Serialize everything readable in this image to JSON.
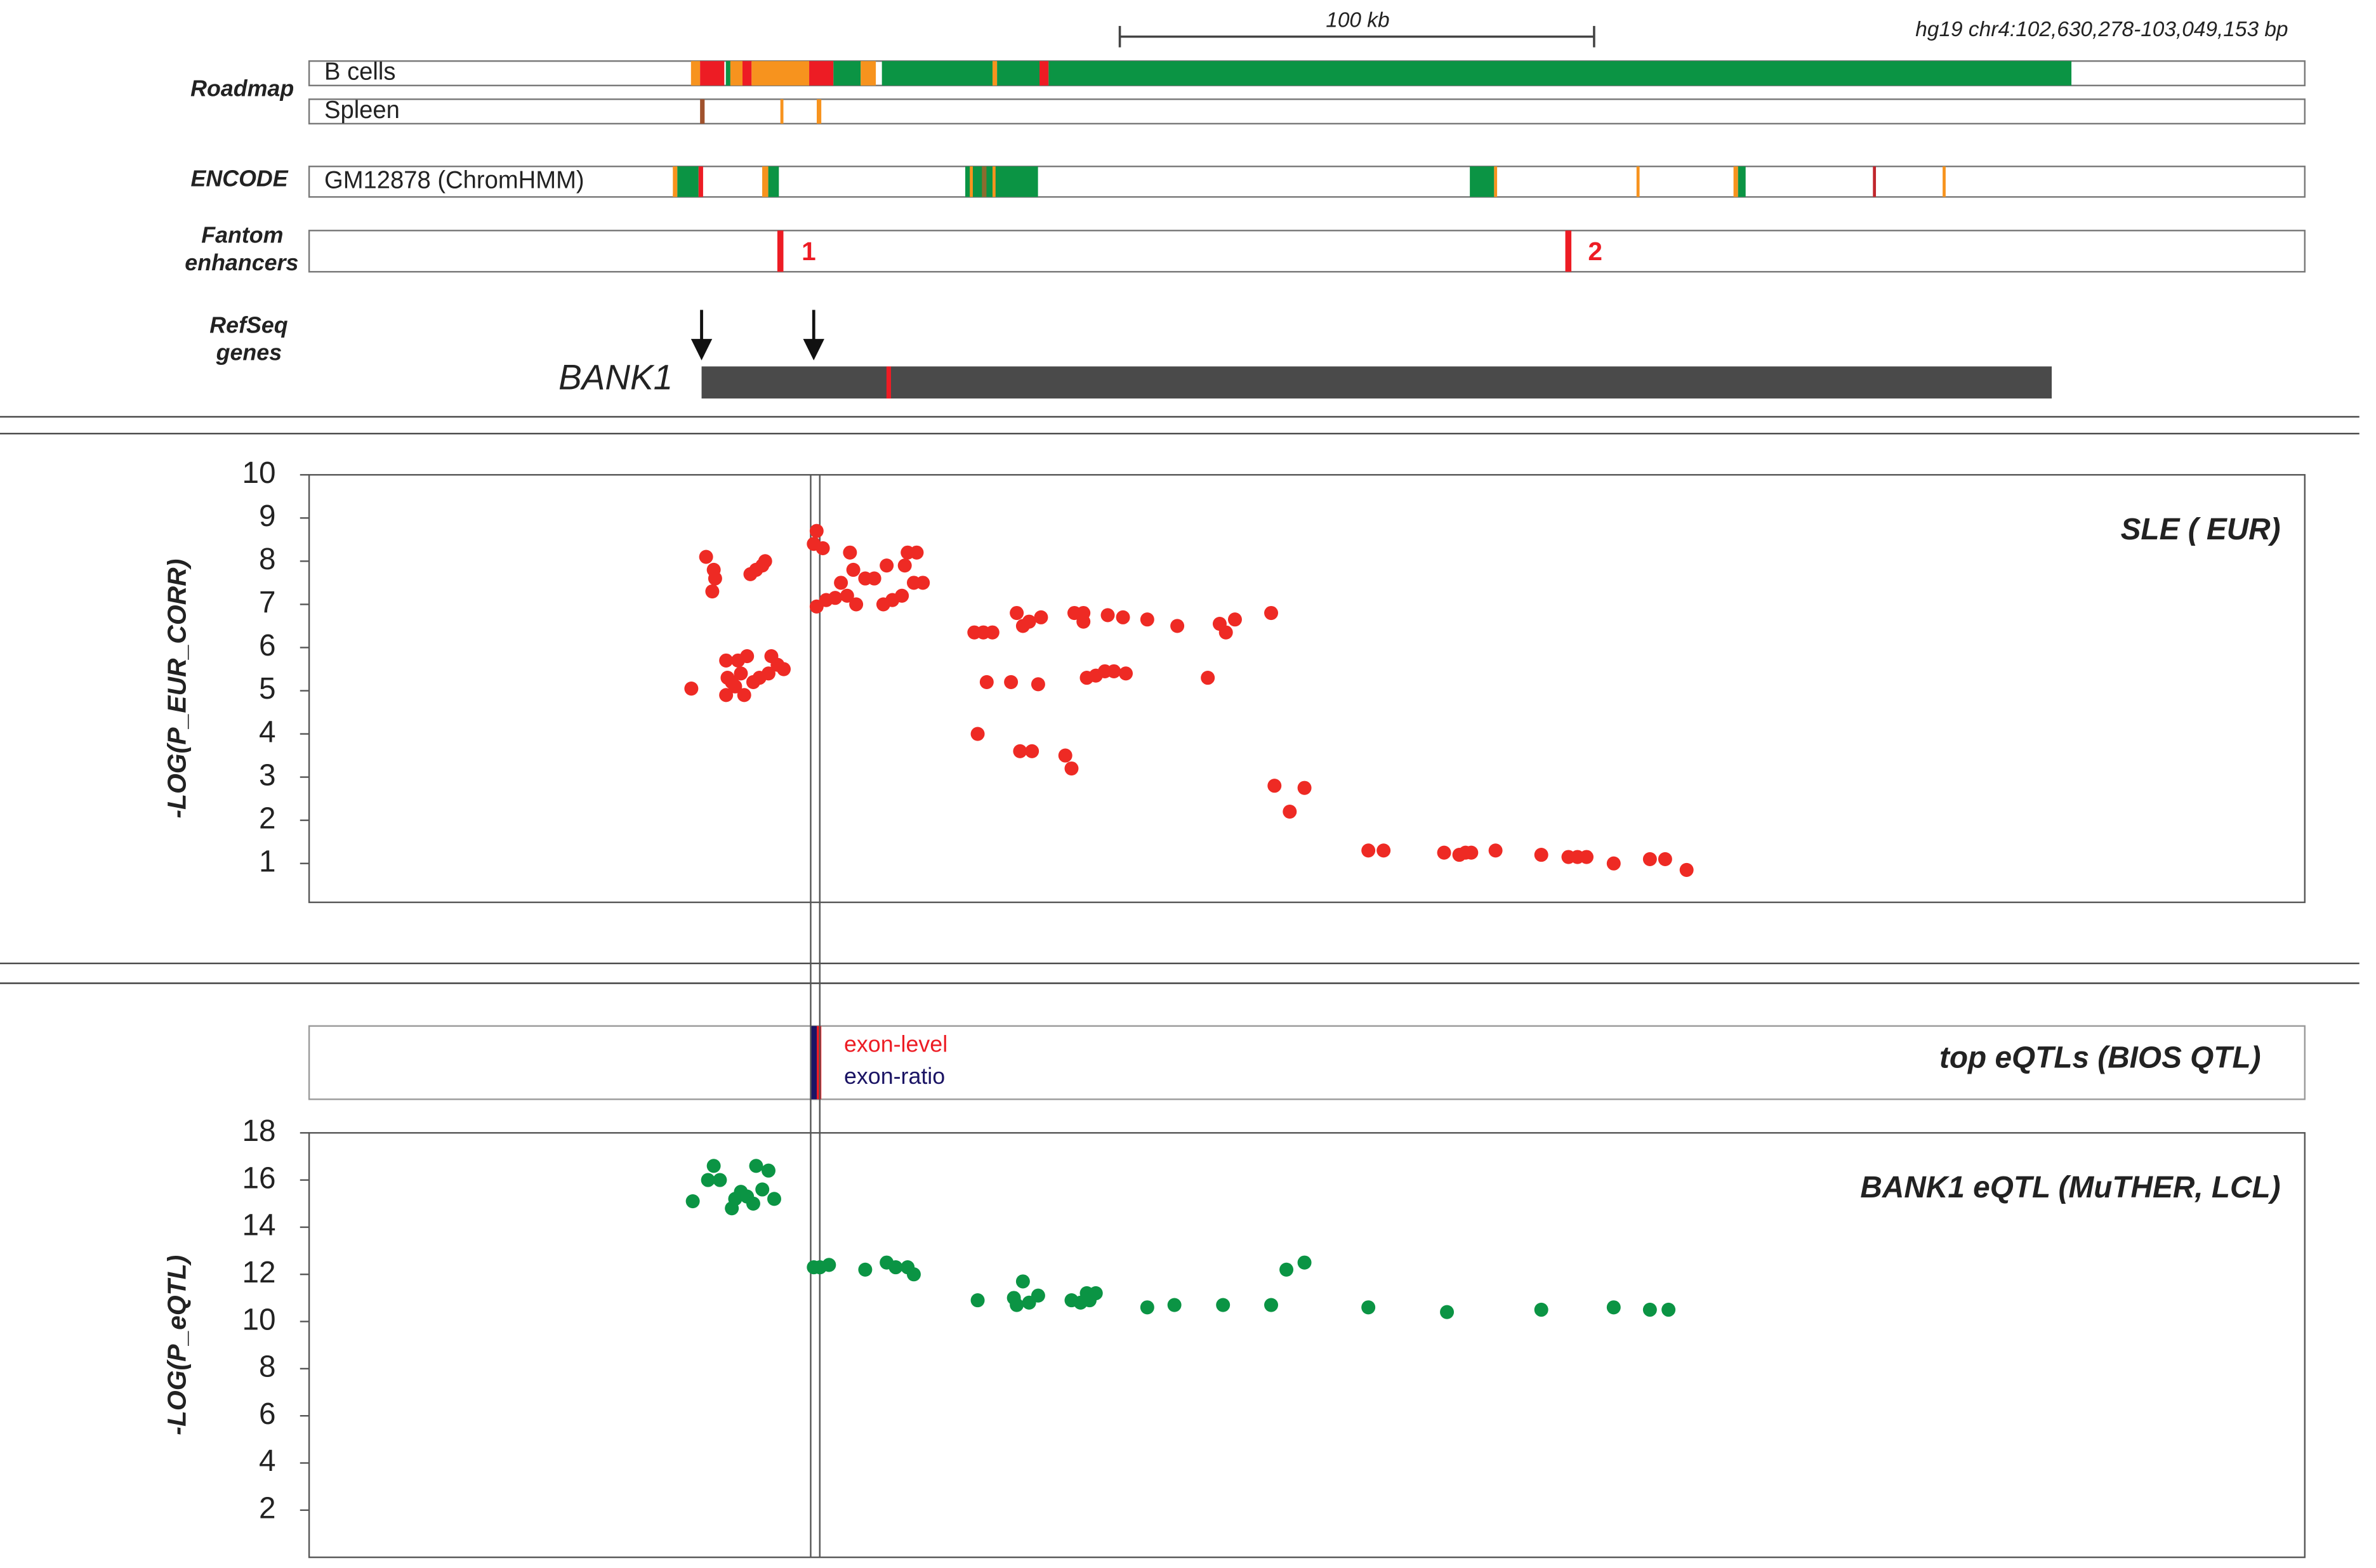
{
  "header": {
    "scale_bar": "100 kb",
    "region": "hg19 chr4:102,630,278-103,049,153 bp"
  },
  "tracks": {
    "roadmap": {
      "label": "Roadmap",
      "rows": [
        "B cells",
        "Spleen"
      ]
    },
    "encode": {
      "label": "ENCODE",
      "row": "GM12878 (ChromHMM)"
    },
    "fantom": {
      "label": [
        "Fantom",
        "enhancers"
      ],
      "enhancers": [
        "1",
        "2"
      ]
    },
    "refseq": {
      "label": [
        "RefSeq",
        "genes"
      ],
      "gene": "BANK1"
    },
    "eqtl_track": {
      "title": "top eQTLs (BIOS QTL)",
      "legend": [
        "exon-level",
        "exon-ratio"
      ]
    }
  },
  "chart_data": [
    {
      "type": "scatter",
      "title": "SLE ( EUR)",
      "y_label": "-LOG(P_EUR_CORR)",
      "color": "#ee2a24",
      "xlim": [
        102630278,
        103049153
      ],
      "ylim": [
        0.1,
        10
      ],
      "yticks": [
        1,
        2,
        3,
        4,
        5,
        6,
        7,
        8,
        9,
        10
      ],
      "x": [
        102710500,
        102713600,
        102715200,
        102715500,
        102714900,
        102717800,
        102718100,
        102719000,
        102720300,
        102720900,
        102721600,
        102722200,
        102722900,
        102724100,
        102725400,
        102726000,
        102723500,
        102724800,
        102726700,
        102727300,
        102728600,
        102729900,
        102717800,
        102719700,
        102736800,
        102736200,
        102738100,
        102736800,
        102738800,
        102740700,
        102741900,
        102743200,
        102743800,
        102745100,
        102744500,
        102747000,
        102748900,
        102750800,
        102751500,
        102752700,
        102754700,
        102755300,
        102755900,
        102757800,
        102757200,
        102759100,
        102769900,
        102771800,
        102773700,
        102770600,
        102772500,
        102777600,
        102778800,
        102780100,
        102781400,
        102783900,
        102779500,
        102782000,
        102783300,
        102789000,
        102790300,
        102790900,
        102792800,
        102792800,
        102793500,
        102795400,
        102797300,
        102799200,
        102801700,
        102797900,
        102801100,
        102806200,
        102812500,
        102818900,
        102821400,
        102822700,
        102824600,
        102832200,
        102832900,
        102836100,
        102839200,
        102852600,
        102855800,
        102868500,
        102871700,
        102873000,
        102874200,
        102879300,
        102888900,
        102894600,
        102896500,
        102898400,
        102904100,
        102911700,
        102914900,
        102919400
      ],
      "values": [
        5.05,
        8.1,
        7.8,
        7.6,
        7.3,
        5.7,
        5.3,
        5.2,
        5.7,
        5.4,
        4.9,
        5.8,
        7.7,
        7.8,
        7.9,
        8.0,
        5.2,
        5.3,
        5.4,
        5.8,
        5.6,
        5.5,
        4.9,
        5.1,
        8.7,
        8.4,
        8.3,
        6.95,
        7.1,
        7.15,
        7.5,
        7.2,
        8.2,
        7.0,
        7.8,
        7.6,
        7.6,
        7.0,
        7.9,
        7.1,
        7.2,
        7.9,
        8.2,
        8.2,
        7.5,
        7.5,
        6.35,
        6.35,
        6.35,
        4.0,
        5.2,
        5.2,
        6.8,
        6.5,
        6.6,
        6.7,
        3.6,
        3.6,
        5.15,
        3.5,
        3.2,
        6.8,
        6.8,
        6.6,
        5.3,
        5.35,
        5.45,
        5.45,
        5.4,
        6.75,
        6.7,
        6.65,
        6.5,
        5.3,
        6.55,
        6.35,
        6.65,
        6.8,
        2.8,
        2.2,
        2.75,
        1.3,
        1.3,
        1.25,
        1.2,
        1.25,
        1.25,
        1.3,
        1.2,
        1.15,
        1.15,
        1.15,
        1.0,
        1.1,
        1.1,
        0.85
      ]
    },
    {
      "type": "scatter",
      "title": "BANK1 eQTL (MuTHER, LCL)",
      "y_label": "-LOG(P_eQTL)",
      "color": "#0b9444",
      "xlim": [
        102630278,
        103049153
      ],
      "ylim": [
        0,
        18
      ],
      "yticks": [
        2,
        4,
        6,
        8,
        10,
        12,
        14,
        16,
        18
      ],
      "x": [
        102710800,
        102715200,
        102714000,
        102716500,
        102719000,
        102719700,
        102720900,
        102722200,
        102723500,
        102724100,
        102725400,
        102726700,
        102727900,
        102736200,
        102737500,
        102739400,
        102747000,
        102751500,
        102753400,
        102755900,
        102757200,
        102770600,
        102778200,
        102778800,
        102780100,
        102781400,
        102783300,
        102790300,
        102792200,
        102793500,
        102794100,
        102795400,
        102806200,
        102811900,
        102822100,
        102832200,
        102835400,
        102839200,
        102852600,
        102869100,
        102888900,
        102904100,
        102911700,
        102915600
      ],
      "values": [
        15.1,
        16.6,
        16.0,
        16.0,
        14.8,
        15.2,
        15.5,
        15.3,
        15.0,
        16.6,
        15.6,
        16.4,
        15.2,
        12.3,
        12.3,
        12.4,
        12.2,
        12.5,
        12.3,
        12.3,
        12.0,
        10.9,
        11.0,
        10.7,
        11.7,
        10.8,
        11.1,
        10.9,
        10.8,
        11.2,
        10.9,
        11.2,
        10.6,
        10.7,
        10.7,
        10.7,
        12.2,
        12.5,
        10.6,
        10.4,
        10.5,
        10.6,
        10.5,
        10.5
      ]
    }
  ]
}
